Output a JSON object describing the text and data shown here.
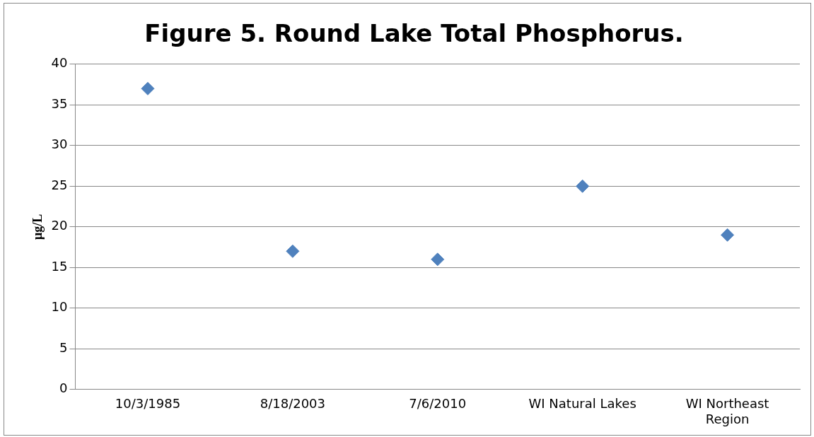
{
  "chart_data": {
    "type": "scatter",
    "title": "Figure 5. Round Lake Total Phosphorus.",
    "ylabel": "μg/L",
    "categories": [
      "10/3/1985",
      "8/18/2003",
      "7/6/2010",
      "WI Natural Lakes",
      "WI Northeast Region"
    ],
    "values": [
      37,
      17,
      16,
      25,
      19
    ],
    "color": "#4f81bd",
    "marker": "diamond",
    "ylim": [
      0,
      40
    ],
    "yticks": [
      0,
      5,
      10,
      15,
      20,
      25,
      30,
      35,
      40
    ],
    "grid": "y",
    "legend": false
  }
}
